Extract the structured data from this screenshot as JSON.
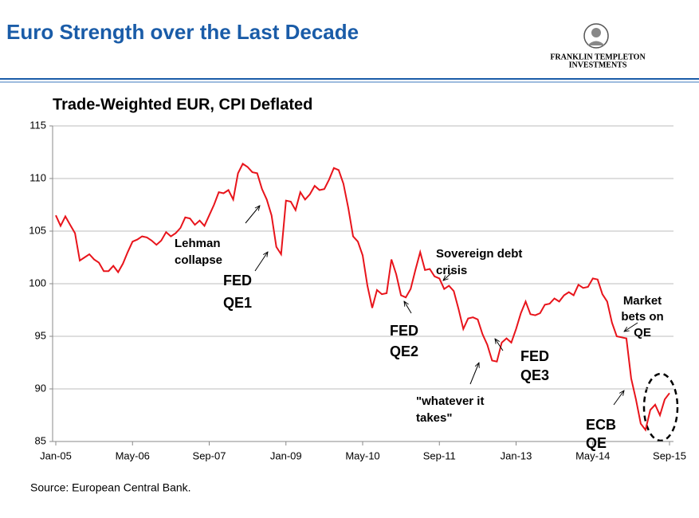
{
  "header": {
    "title": "Euro Strength over the Last Decade",
    "logo": [
      "FRANKLIN TEMPLETON",
      "INVESTMENTS"
    ]
  },
  "chart_data": {
    "type": "line",
    "title": "Trade-Weighted EUR, CPI Deflated",
    "categories": [
      "Jan-05",
      null,
      null,
      null,
      null,
      null,
      null,
      null,
      null,
      null,
      null,
      null,
      null,
      null,
      null,
      null,
      "May-06",
      null,
      null,
      null,
      null,
      null,
      null,
      null,
      null,
      null,
      null,
      null,
      null,
      null,
      null,
      null,
      "Sep-07",
      null,
      null,
      null,
      null,
      null,
      null,
      null,
      null,
      null,
      null,
      null,
      null,
      null,
      null,
      null,
      "Jan-09",
      null,
      null,
      null,
      null,
      null,
      null,
      null,
      null,
      null,
      null,
      null,
      null,
      null,
      null,
      null,
      "May-10",
      null,
      null,
      null,
      null,
      null,
      null,
      null,
      null,
      null,
      null,
      null,
      null,
      null,
      null,
      null,
      "Sep-11",
      null,
      null,
      null,
      null,
      null,
      null,
      null,
      null,
      null,
      null,
      null,
      null,
      null,
      null,
      null,
      "Jan-13",
      null,
      null,
      null,
      null,
      null,
      null,
      null,
      null,
      null,
      null,
      null,
      null,
      null,
      null,
      null,
      "May-14",
      null,
      null,
      null,
      null,
      null,
      null,
      null,
      null,
      null,
      null,
      null,
      null,
      null,
      null,
      null,
      "Sep-15"
    ],
    "series": [
      {
        "name": "Trade-Weighted EUR",
        "color": "#e8141b",
        "values": [
          106.5,
          105.5,
          106.4,
          105.6,
          104.8,
          102.2,
          102.5,
          102.8,
          102.3,
          102.0,
          101.2,
          101.2,
          101.7,
          101.1,
          101.9,
          103.0,
          104.0,
          104.2,
          104.5,
          104.4,
          104.1,
          103.7,
          104.1,
          104.9,
          104.5,
          104.8,
          105.3,
          106.3,
          106.2,
          105.6,
          106.0,
          105.5,
          106.5,
          107.5,
          108.7,
          108.6,
          108.9,
          108.0,
          110.5,
          111.4,
          111.1,
          110.6,
          110.5,
          109.0,
          108.0,
          106.5,
          103.5,
          102.8,
          107.9,
          107.8,
          107.0,
          108.7,
          108.0,
          108.5,
          109.3,
          108.9,
          109.0,
          109.9,
          111.0,
          110.8,
          109.5,
          107.2,
          104.5,
          104.0,
          102.7,
          99.8,
          97.7,
          99.4,
          99.0,
          99.1,
          102.3,
          100.9,
          98.9,
          98.7,
          99.5,
          101.3,
          103.0,
          101.3,
          101.4,
          100.7,
          100.5,
          99.5,
          99.8,
          99.3,
          97.6,
          95.7,
          96.7,
          96.8,
          96.6,
          95.2,
          94.2,
          92.7,
          92.6,
          94.4,
          94.8,
          94.4,
          95.7,
          97.2,
          98.3,
          97.1,
          97.0,
          97.2,
          98.0,
          98.1,
          98.6,
          98.3,
          98.9,
          99.2,
          98.9,
          99.9,
          99.6,
          99.7,
          100.5,
          100.4,
          99.0,
          98.3,
          96.3,
          95.0,
          94.9,
          94.8,
          91.0,
          89.0,
          86.7,
          86.1,
          88.0,
          88.5,
          87.5,
          89.0,
          89.6
        ]
      }
    ],
    "ylim": [
      85,
      115
    ],
    "yticks": [
      85,
      90,
      95,
      100,
      105,
      110,
      115
    ],
    "grid": true,
    "annotations": [
      [
        "Lehman",
        "collapse"
      ],
      [
        "FED",
        "QE1"
      ],
      [
        "FED",
        "QE2"
      ],
      [
        "Sovereign debt",
        "crisis"
      ],
      [
        "\"whatever it",
        "takes\""
      ],
      [
        "FED",
        "QE3"
      ],
      [
        "ECB",
        "QE"
      ],
      [
        "Market",
        "bets on",
        "QE"
      ]
    ],
    "source": "Source: European Central Bank."
  }
}
